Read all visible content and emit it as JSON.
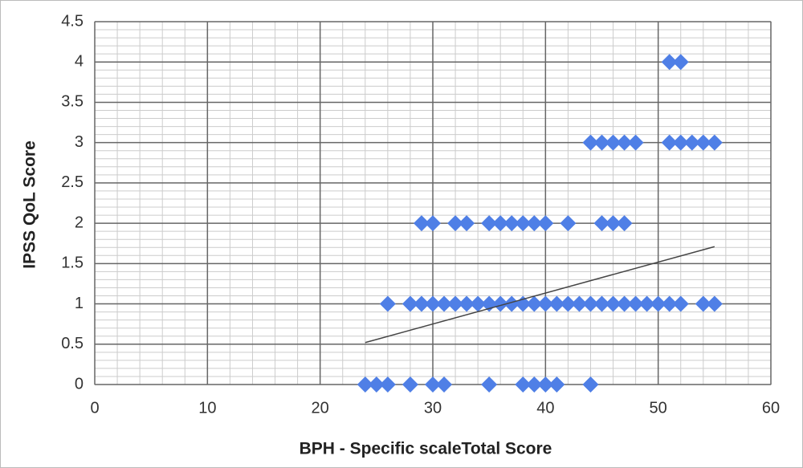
{
  "chart_data": {
    "type": "scatter",
    "x_label": "BPH - Specific scaleTotal Score",
    "y_label": "IPSS  QoL Score",
    "x": [
      51,
      52,
      44,
      45,
      46,
      47,
      48,
      51,
      52,
      53,
      54,
      55,
      29,
      30,
      32,
      33,
      35,
      36,
      37,
      38,
      39,
      40,
      42,
      45,
      46,
      47,
      26,
      28,
      29,
      30,
      31,
      32,
      33,
      34,
      35,
      36,
      37,
      38,
      39,
      40,
      41,
      42,
      43,
      44,
      45,
      46,
      47,
      48,
      49,
      50,
      51,
      52,
      54,
      55,
      24,
      25,
      26,
      28,
      30,
      31,
      35,
      38,
      39,
      40,
      41,
      44
    ],
    "y": [
      4,
      4,
      3,
      3,
      3,
      3,
      3,
      3,
      3,
      3,
      3,
      3,
      2,
      2,
      2,
      2,
      2,
      2,
      2,
      2,
      2,
      2,
      2,
      2,
      2,
      2,
      1,
      1,
      1,
      1,
      1,
      1,
      1,
      1,
      1,
      1,
      1,
      1,
      1,
      1,
      1,
      1,
      1,
      1,
      1,
      1,
      1,
      1,
      1,
      1,
      1,
      1,
      1,
      1,
      0,
      0,
      0,
      0,
      0,
      0,
      0,
      0,
      0,
      0,
      0,
      0
    ],
    "color": "#4f7fe6",
    "trendline": {
      "x": [
        24,
        55
      ],
      "y": [
        0.52,
        1.71
      ],
      "color": "#444444"
    },
    "xlim": [
      0,
      60
    ],
    "xticks": [
      0,
      10,
      20,
      30,
      40,
      50,
      60
    ],
    "ylim": [
      0,
      4.5
    ],
    "yticks": [
      0,
      0.5,
      1,
      1.5,
      2,
      2.5,
      3,
      3.5,
      4,
      4.5
    ],
    "grid": true,
    "minor_grid": true
  }
}
